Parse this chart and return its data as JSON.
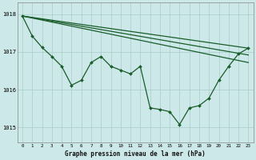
{
  "bg_color": "#cce8e8",
  "grid_color": "#aacccc",
  "line_color": "#1a5c2a",
  "title": "Graphe pression niveau de la mer (hPa)",
  "xlim": [
    -0.5,
    23.5
  ],
  "ylim": [
    1014.6,
    1018.3
  ],
  "yticks": [
    1015,
    1016,
    1017,
    1018
  ],
  "line1_pts": [
    [
      0,
      1017.95
    ],
    [
      23,
      1017.1
    ]
  ],
  "line2_pts": [
    [
      0,
      1017.95
    ],
    [
      23,
      1016.92
    ]
  ],
  "line3_pts": [
    [
      0,
      1017.95
    ],
    [
      23,
      1016.72
    ]
  ],
  "main_x": [
    0,
    1,
    2,
    3,
    4,
    5,
    6,
    7,
    8,
    9,
    10,
    11,
    12,
    13,
    14,
    15,
    16,
    17,
    18,
    19,
    20,
    21,
    22,
    23
  ],
  "main_y": [
    1017.95,
    1017.42,
    1017.12,
    1016.88,
    1016.62,
    1016.12,
    1016.25,
    1016.72,
    1016.88,
    1016.62,
    1016.52,
    1016.42,
    1016.62,
    1015.52,
    1015.48,
    1015.42,
    1015.08,
    1015.52,
    1015.58,
    1015.78,
    1016.25,
    1016.62,
    1016.95,
    1017.1
  ]
}
